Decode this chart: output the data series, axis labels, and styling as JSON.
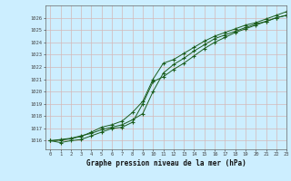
{
  "title": "Graphe pression niveau de la mer (hPa)",
  "bg_color": "#cceeff",
  "grid_color": "#b8d4d4",
  "line_color": "#1a5c1a",
  "marker_color": "#1a5c1a",
  "xlim": [
    -0.5,
    23
  ],
  "ylim": [
    1015.3,
    1027.0
  ],
  "xticks": [
    0,
    1,
    2,
    3,
    4,
    5,
    6,
    7,
    8,
    9,
    10,
    11,
    12,
    13,
    14,
    15,
    16,
    17,
    18,
    19,
    20,
    21,
    22,
    23
  ],
  "yticks": [
    1016,
    1017,
    1018,
    1019,
    1020,
    1021,
    1022,
    1023,
    1024,
    1025,
    1026
  ],
  "series": [
    [
      1016.0,
      1016.1,
      1016.2,
      1016.4,
      1016.6,
      1016.9,
      1017.1,
      1017.3,
      1017.7,
      1018.2,
      1020.0,
      1021.5,
      1022.2,
      1022.7,
      1023.3,
      1023.8,
      1024.3,
      1024.6,
      1024.9,
      1025.2,
      1025.5,
      1025.7,
      1026.0,
      1026.2
    ],
    [
      1016.0,
      1015.85,
      1016.0,
      1016.1,
      1016.4,
      1016.7,
      1017.0,
      1017.1,
      1017.5,
      1019.0,
      1020.8,
      1021.2,
      1021.8,
      1022.3,
      1022.9,
      1023.5,
      1024.0,
      1024.4,
      1024.8,
      1025.1,
      1025.4,
      1025.7,
      1026.0,
      1026.2
    ],
    [
      1016.0,
      1016.05,
      1016.15,
      1016.35,
      1016.7,
      1017.1,
      1017.3,
      1017.6,
      1018.3,
      1019.2,
      1021.0,
      1022.3,
      1022.6,
      1023.1,
      1023.6,
      1024.1,
      1024.5,
      1024.8,
      1025.1,
      1025.4,
      1025.6,
      1025.9,
      1026.2,
      1026.5
    ]
  ]
}
